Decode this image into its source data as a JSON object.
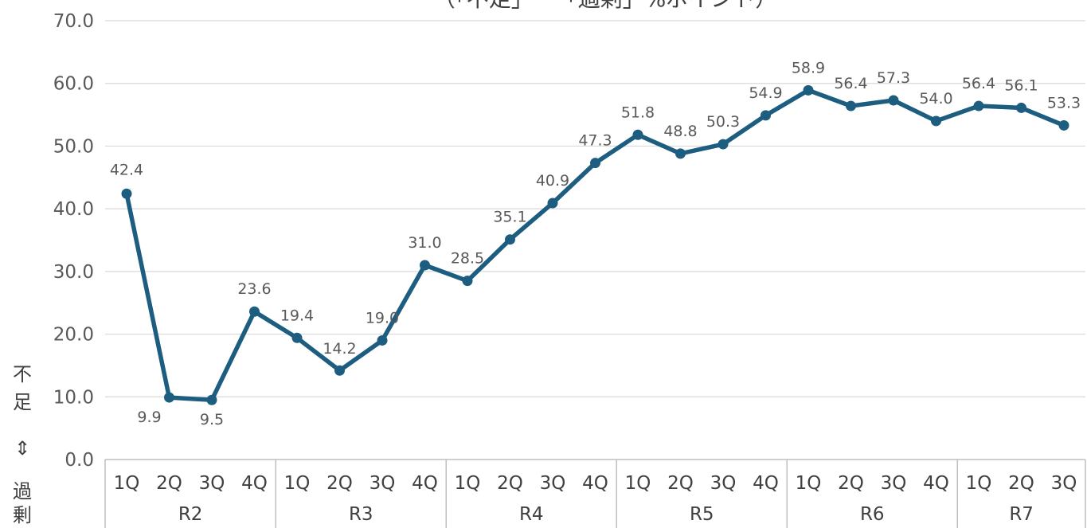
{
  "chart_data": {
    "type": "line",
    "title": "（「不足」－「過剰」%ポイント）",
    "ylabel_chars": [
      "不",
      "足",
      "⇕",
      "過",
      "剰"
    ],
    "ylim": [
      0,
      70
    ],
    "yticks": [
      "0.0",
      "10.0",
      "20.0",
      "30.0",
      "40.0",
      "50.0",
      "60.0",
      "70.0"
    ],
    "grid": true,
    "groups": [
      {
        "name": "R2",
        "quarters": [
          "1Q",
          "2Q",
          "3Q",
          "4Q"
        ]
      },
      {
        "name": "R3",
        "quarters": [
          "1Q",
          "2Q",
          "3Q",
          "4Q"
        ]
      },
      {
        "name": "R4",
        "quarters": [
          "1Q",
          "2Q",
          "3Q",
          "4Q"
        ]
      },
      {
        "name": "R5",
        "quarters": [
          "1Q",
          "2Q",
          "3Q",
          "4Q"
        ]
      },
      {
        "name": "R6",
        "quarters": [
          "1Q",
          "2Q",
          "3Q",
          "4Q"
        ]
      },
      {
        "name": "R7",
        "quarters": [
          "1Q",
          "2Q",
          "3Q"
        ]
      }
    ],
    "series": [
      {
        "values": [
          42.4,
          9.9,
          9.5,
          23.6,
          19.4,
          14.2,
          19.0,
          31.0,
          28.5,
          35.1,
          40.9,
          47.3,
          51.8,
          48.8,
          50.3,
          54.9,
          58.9,
          56.4,
          57.3,
          54.0,
          56.4,
          56.1,
          53.3
        ],
        "labels": [
          "42.4",
          "9.9",
          "9.5",
          "23.6",
          "19.4",
          "14.2",
          "19.0",
          "31.0",
          "28.5",
          "35.1",
          "40.9",
          "47.3",
          "51.8",
          "48.8",
          "50.3",
          "54.9",
          "58.9",
          "56.4",
          "57.3",
          "54.0",
          "56.4",
          "56.1",
          "53.3"
        ]
      }
    ],
    "colors": {
      "line": "#1c5d80",
      "grid": "#d9d9d9",
      "axis": "#bfbfbf"
    }
  }
}
